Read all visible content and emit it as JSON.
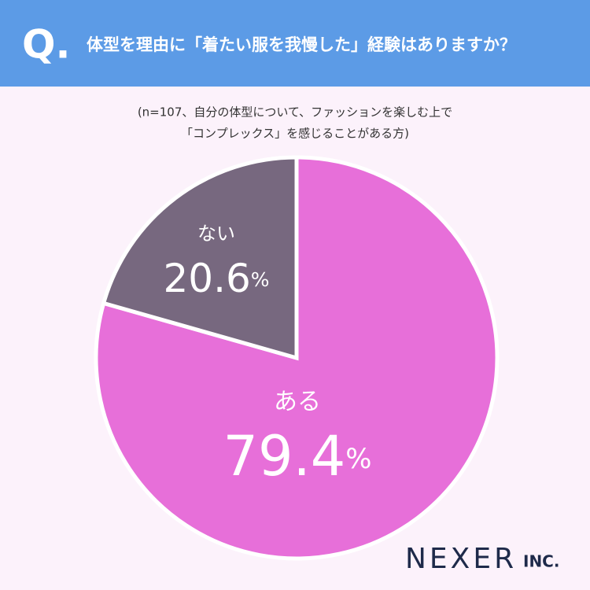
{
  "prefix": "Q.",
  "chart_data": {
    "type": "pie",
    "title": "体型を理由に「着たい服を我慢した」経験はありますか？",
    "subtitle": [
      "(n=107、自分の体型について、ファッションを楽しむ上で",
      "「コンプレックス」を感じることがある方)"
    ],
    "categories": [
      "ある",
      "ない"
    ],
    "values": [
      79.4,
      20.6
    ],
    "value_labels": [
      "79.4%",
      "20.6%"
    ],
    "colors": [
      "#e76fd9",
      "#77687f"
    ]
  },
  "brand": {
    "name": "NEXER",
    "suffix": "INC."
  }
}
